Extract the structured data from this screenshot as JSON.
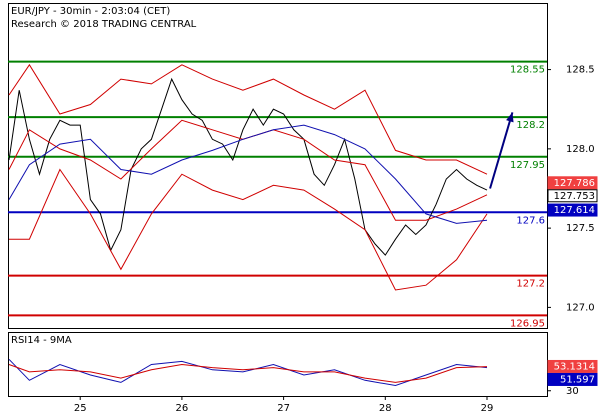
{
  "chart_data": [
    {
      "type": "line",
      "title": "EUR/JPY - 30min - 2:03:04 (CET)",
      "subtitle": "Research © 2018 TRADING CENTRAL",
      "x": [
        24.3,
        24.4,
        24.5,
        24.6,
        24.7,
        24.8,
        24.9,
        25.0,
        25.1,
        25.2,
        25.3,
        25.4,
        25.5,
        25.6,
        25.7,
        25.8,
        25.9,
        26.0,
        26.1,
        26.2,
        26.3,
        26.4,
        26.5,
        26.6,
        26.7,
        26.8,
        26.9,
        27.0,
        27.1,
        27.2,
        27.3,
        27.4,
        27.5,
        27.6,
        27.7,
        27.8,
        27.9,
        28.0,
        28.1,
        28.2,
        28.3,
        28.4,
        28.5,
        28.6,
        28.7,
        28.8,
        28.9,
        29.0
      ],
      "xlim": [
        24.29,
        29.59
      ],
      "ylim": [
        126.87,
        128.92
      ],
      "yticks": [
        128.5,
        {
          "value": 128,
          "label": "128.0"
        },
        127.5,
        {
          "value": 127,
          "label": "127.0"
        }
      ],
      "series": [
        {
          "color": "#000000",
          "values": [
            127.93,
            128.37,
            128.06,
            127.84,
            128.06,
            128.18,
            128.15,
            128.15,
            127.68,
            127.59,
            127.36,
            127.49,
            127.87,
            128.0,
            128.06,
            128.25,
            128.44,
            128.31,
            128.22,
            128.18,
            128.06,
            128.03,
            127.93,
            128.12,
            128.25,
            128.15,
            128.25,
            128.22,
            128.12,
            128.06,
            127.84,
            127.77,
            127.9,
            128.06,
            127.81,
            127.49,
            127.4,
            127.33,
            127.43,
            127.52,
            127.46,
            127.52,
            127.65,
            127.81,
            127.87,
            127.81,
            127.77,
            127.74
          ]
        },
        {
          "color": "#d00000",
          "x": [
            24.3,
            24.5,
            24.8,
            25.1,
            25.4,
            25.7,
            26.0,
            26.3,
            26.6,
            26.9,
            27.2,
            27.5,
            27.8,
            28.1,
            28.4,
            28.7,
            29.0
          ],
          "values": [
            128.34,
            128.53,
            128.22,
            128.28,
            128.44,
            128.41,
            128.53,
            128.44,
            128.37,
            128.44,
            128.34,
            128.25,
            128.37,
            127.99,
            127.93,
            127.93,
            127.84
          ]
        },
        {
          "color": "#d00000",
          "x": [
            24.3,
            24.5,
            24.8,
            25.1,
            25.4,
            25.7,
            26.0,
            26.3,
            26.6,
            26.9,
            27.2,
            27.5,
            27.8,
            28.1,
            28.4,
            28.7,
            29.0
          ],
          "values": [
            127.43,
            127.43,
            127.87,
            127.59,
            127.24,
            127.59,
            127.84,
            127.74,
            127.68,
            127.77,
            127.74,
            127.62,
            127.49,
            127.11,
            127.14,
            127.3,
            127.59
          ]
        },
        {
          "color": "#d00000",
          "x": [
            24.3,
            24.5,
            24.8,
            25.1,
            25.4,
            25.7,
            26.0,
            26.3,
            26.6,
            26.9,
            27.2,
            27.5,
            27.8,
            28.1,
            28.4,
            28.7,
            29.0
          ],
          "values": [
            127.87,
            128.12,
            128.0,
            127.93,
            127.81,
            128.0,
            128.18,
            128.12,
            128.06,
            128.12,
            128.06,
            127.93,
            127.9,
            127.55,
            127.55,
            127.62,
            127.71
          ]
        },
        {
          "color": "#1010b0",
          "x": [
            24.3,
            24.5,
            24.8,
            25.1,
            25.4,
            25.7,
            26.0,
            26.3,
            26.6,
            26.9,
            27.2,
            27.5,
            27.8,
            28.1,
            28.4,
            28.7,
            29.0
          ],
          "values": [
            127.68,
            127.9,
            128.03,
            128.06,
            127.87,
            127.84,
            127.93,
            127.99,
            128.06,
            128.12,
            128.15,
            128.09,
            128.0,
            127.81,
            127.59,
            127.53,
            127.55
          ]
        }
      ],
      "levels": [
        {
          "value": 128.55,
          "color": "#008000"
        },
        {
          "value": 128.2,
          "color": "#008000"
        },
        {
          "value": 127.95,
          "color": "#008000"
        },
        {
          "value": 127.6,
          "color": "#0000c0"
        },
        {
          "value": 127.2,
          "color": "#d00000"
        },
        {
          "value": 126.95,
          "color": "#d00000"
        }
      ],
      "price_tags": [
        {
          "value": 127.786,
          "color": "#f04040"
        },
        {
          "value": 127.753,
          "color": "#ffffff"
        },
        {
          "value": 127.614,
          "color": "#0000c0"
        }
      ],
      "arrow": {
        "x": [
          29.03,
          29.25
        ],
        "y": [
          127.75,
          128.23
        ],
        "color": "#000080"
      }
    },
    {
      "type": "line",
      "title": "RSI14 - 9MA",
      "x": [
        24.3,
        24.5,
        24.8,
        25.1,
        25.4,
        25.7,
        26.0,
        26.3,
        26.6,
        26.9,
        27.2,
        27.5,
        27.8,
        28.1,
        28.4,
        28.7,
        29.0
      ],
      "xlim": [
        24.29,
        29.59
      ],
      "xticks": [
        25,
        26,
        27,
        28,
        29
      ],
      "ylim": [
        25,
        85
      ],
      "yticks": [
        30
      ],
      "series": [
        {
          "color": "#1010b0",
          "values": [
            60,
            40,
            55,
            45,
            38,
            55,
            58,
            50,
            48,
            55,
            45,
            50,
            40,
            35,
            45,
            55,
            52
          ]
        },
        {
          "color": "#d00000",
          "values": [
            55,
            48,
            50,
            48,
            42,
            50,
            55,
            52,
            50,
            52,
            48,
            48,
            42,
            38,
            42,
            52,
            53
          ]
        }
      ],
      "price_tags": [
        {
          "value": 53.1314,
          "color": "#f04040"
        },
        {
          "value": 51.597,
          "color": "#0000c0"
        }
      ]
    }
  ]
}
